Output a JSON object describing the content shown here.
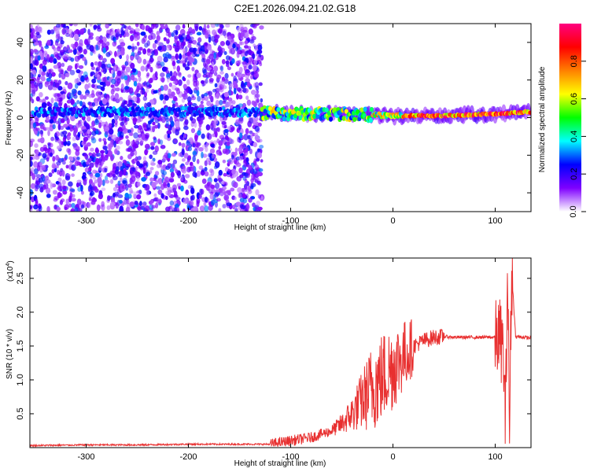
{
  "title": "C2E1.2026.094.21.02.G18",
  "chart_data": [
    {
      "type": "heatmap",
      "xlabel": "Height of straight line (km)",
      "ylabel": "Frequency (Hz)",
      "xlim": [
        -355,
        135
      ],
      "ylim": [
        -50,
        50
      ],
      "xticks": [
        -300,
        -200,
        -100,
        0,
        100
      ],
      "yticks": [
        -40,
        -20,
        0,
        20,
        40
      ],
      "colorbar": {
        "label": "Normalized spectral amplitude",
        "range": [
          0,
          1
        ],
        "ticks": [
          "0.0",
          "0.2",
          "0.4",
          "0.6",
          "0.8"
        ],
        "colors": [
          "#ffffff",
          "#7f00ff",
          "#0000ff",
          "#00ffff",
          "#00ff00",
          "#ffff00",
          "#ff8000",
          "#ff0000",
          "#ff0080"
        ]
      },
      "description_series": [
        {
          "name": "noise region",
          "x_range": [
            -355,
            -128
          ],
          "freq_range": [
            -50,
            50
          ]
        },
        {
          "name": "tone",
          "x": [
            -350,
            -250,
            -150,
            -100,
            -50,
            0,
            50,
            100,
            130
          ],
          "y": [
            3,
            3,
            3,
            2,
            2,
            1,
            1,
            2,
            3
          ]
        }
      ]
    },
    {
      "type": "line",
      "xlabel": "Height of straight line (km)",
      "ylabel": "SNR (10 * v/v)",
      "y_multiplier": "(x10",
      "y_multiplier_exp": "4",
      "xlim": [
        -355,
        135
      ],
      "ylim": [
        0,
        2.8
      ],
      "xticks": [
        -300,
        -200,
        -100,
        0,
        100
      ],
      "yticks": [
        "0.5",
        "1.0",
        "1.5",
        "2.0",
        "2.5"
      ],
      "color": "#e83030",
      "series": [
        {
          "x": [
            -355,
            -300,
            -250,
            -200,
            -150,
            -120,
            -100,
            -80,
            -60,
            -50,
            -40,
            -30,
            -20,
            -10,
            0,
            10,
            20,
            30,
            40,
            50,
            60,
            70,
            80,
            90,
            100,
            105,
            108,
            110,
            112,
            114,
            116,
            120,
            135
          ],
          "y": [
            0.03,
            0.04,
            0.04,
            0.05,
            0.05,
            0.05,
            0.1,
            0.15,
            0.25,
            0.35,
            0.5,
            0.7,
            0.9,
            1.05,
            1.2,
            1.35,
            1.5,
            1.58,
            1.63,
            1.64,
            1.63,
            1.63,
            1.63,
            1.63,
            1.63,
            1.62,
            1.4,
            0.3,
            2.7,
            0.25,
            2.6,
            1.64,
            1.62
          ]
        }
      ]
    }
  ]
}
